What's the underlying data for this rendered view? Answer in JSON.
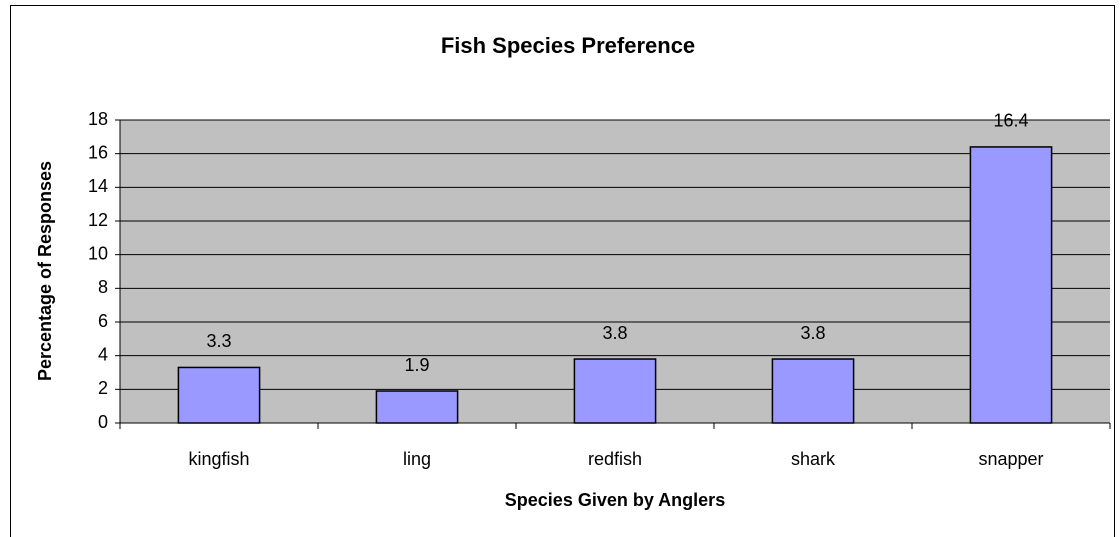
{
  "chart_data": {
    "type": "bar",
    "title": "Fish Species Preference",
    "x_label": "Species Given by Anglers",
    "y_label": "Percentage of Responses",
    "categories": [
      "kingfish",
      "ling",
      "redfish",
      "shark",
      "snapper"
    ],
    "values": [
      3.3,
      1.9,
      3.8,
      3.8,
      16.4
    ],
    "color": "#9999ff",
    "ylim": [
      0,
      18
    ],
    "yticks": [
      0,
      2,
      4,
      6,
      8,
      10,
      12,
      14,
      16,
      18
    ],
    "grid": true
  }
}
